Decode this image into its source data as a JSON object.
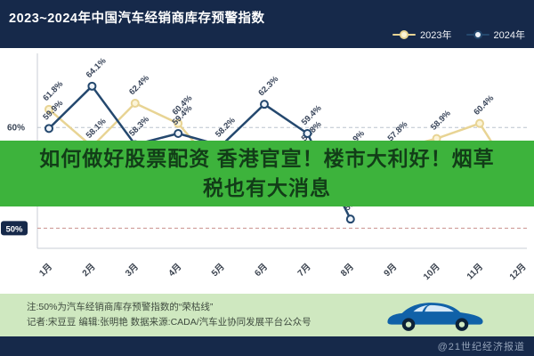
{
  "header": {
    "title": "2023~2024年中国汽车经销商库存预警指数",
    "legend": [
      {
        "label": "2023年",
        "color": "#e8d494",
        "marker_fill": "#fbf4d8"
      },
      {
        "label": "2024年",
        "color": "#24486e",
        "marker_fill": "#eef3f9"
      }
    ]
  },
  "overlay_banner": {
    "line1": "如何做好股票配资 香港官宣！楼市大利好！烟草",
    "line2": "税也有大消息",
    "bg_color": "#3db33c",
    "text_color": "#123d18"
  },
  "chart_data": {
    "type": "line",
    "title": "2023~2024年中国汽车经销商库存预警指数",
    "x": [
      "1月",
      "2月",
      "3月",
      "4月",
      "5月",
      "6月",
      "7月",
      "8月",
      "9月",
      "10月",
      "11月",
      "12月"
    ],
    "series": [
      {
        "name": "2023年",
        "color": "#e8d494",
        "marker_fill": "#fbf4d8",
        "values": [
          61.8,
          58.1,
          62.4,
          60.4,
          55.4,
          54.0,
          57.8,
          56.9,
          57.8,
          58.9,
          60.4,
          53.7
        ]
      },
      {
        "name": "2024年",
        "color": "#24486e",
        "marker_fill": "#eef3f9",
        "values": [
          59.9,
          64.1,
          58.3,
          59.4,
          58.2,
          62.3,
          59.4,
          50.9,
          null,
          null,
          null,
          null
        ]
      }
    ],
    "ylim": [
      48,
      67
    ],
    "gridlines": [
      {
        "value": 60,
        "label": "60%",
        "style": "plain",
        "color": "#bcc3cd"
      },
      {
        "value": 50,
        "label": "50%",
        "style": "badge",
        "color": "#c9908d"
      }
    ],
    "boom_bust_line": 50,
    "legend_position": "top-right",
    "label_format": "one-decimal-percent"
  },
  "footer_note": {
    "line1": "注:50%为汽车经销商库存预警指数的“荣枯线”",
    "line2": "记者:宋豆豆  编辑:张明艳  数据来源:CADA/汽车业协同发展平台公众号"
  },
  "bottom_bar": {
    "watermark": "@21世纪经济报道"
  }
}
